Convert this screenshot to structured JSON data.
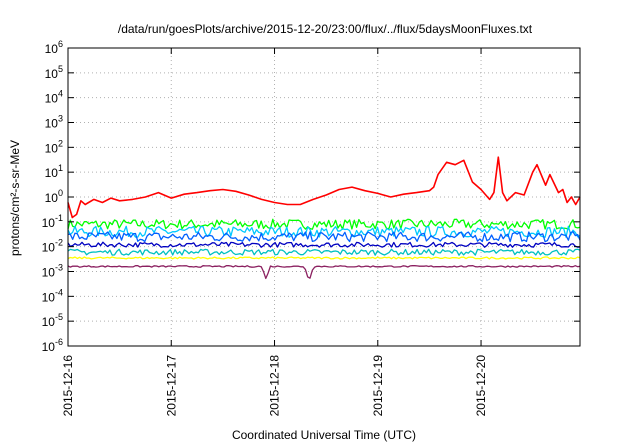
{
  "chart_data": {
    "type": "line",
    "title": "/data/run/goesPlots/archive/2015-12-20/23:00/flux/../flux/5daysMoonFluxes.txt",
    "xlabel": "Coordinated Universal Time (UTC)",
    "ylabel": "protons/cm²-s-sr-MeV",
    "yscale": "log",
    "ylim": [
      1e-06,
      1000000.0
    ],
    "y_ticks": [
      {
        "value": 1e-06,
        "base": "10",
        "exp": "-6"
      },
      {
        "value": 1e-05,
        "base": "10",
        "exp": "-5"
      },
      {
        "value": 0.0001,
        "base": "10",
        "exp": "-4"
      },
      {
        "value": 0.001,
        "base": "10",
        "exp": "-3"
      },
      {
        "value": 0.01,
        "base": "10",
        "exp": "-2"
      },
      {
        "value": 0.1,
        "base": "10",
        "exp": "-1"
      },
      {
        "value": 1,
        "base": "10",
        "exp": "0"
      },
      {
        "value": 10,
        "base": "10",
        "exp": "1"
      },
      {
        "value": 100,
        "base": "10",
        "exp": "2"
      },
      {
        "value": 1000,
        "base": "10",
        "exp": "3"
      },
      {
        "value": 10000,
        "base": "10",
        "exp": "4"
      },
      {
        "value": 100000,
        "base": "10",
        "exp": "5"
      },
      {
        "value": 1000000,
        "base": "10",
        "exp": "6"
      }
    ],
    "xlim": [
      "2015-12-16",
      "2015-12-20T23:00"
    ],
    "x_tick_labels": [
      "2015-12-16",
      "2015-12-17",
      "2015-12-18",
      "2015-12-19",
      "2015-12-20"
    ],
    "grid": true,
    "series": [
      {
        "color": "#ff0000",
        "x": [
          "2015-12-16T00:00",
          "2015-12-16T01:00",
          "2015-12-16T02:00",
          "2015-12-16T03:00",
          "2015-12-16T04:00",
          "2015-12-16T06:00",
          "2015-12-16T08:00",
          "2015-12-16T10:00",
          "2015-12-16T12:00",
          "2015-12-16T15:00",
          "2015-12-16T18:00",
          "2015-12-16T21:00",
          "2015-12-17T00:00",
          "2015-12-17T03:00",
          "2015-12-17T06:00",
          "2015-12-17T09:00",
          "2015-12-17T12:00",
          "2015-12-17T15:00",
          "2015-12-17T18:00",
          "2015-12-17T21:00",
          "2015-12-18T00:00",
          "2015-12-18T03:00",
          "2015-12-18T06:00",
          "2015-12-18T09:00",
          "2015-12-18T12:00",
          "2015-12-18T15:00",
          "2015-12-18T18:00",
          "2015-12-18T21:00",
          "2015-12-19T00:00",
          "2015-12-19T03:00",
          "2015-12-19T06:00",
          "2015-12-19T09:00",
          "2015-12-19T12:00",
          "2015-12-19T13:00",
          "2015-12-19T14:00",
          "2015-12-19T16:00",
          "2015-12-19T18:00",
          "2015-12-19T20:00",
          "2015-12-19T22:00",
          "2015-12-20T00:00",
          "2015-12-20T02:00",
          "2015-12-20T03:00",
          "2015-12-20T04:00",
          "2015-12-20T05:00",
          "2015-12-20T06:00",
          "2015-12-20T08:00",
          "2015-12-20T10:00",
          "2015-12-20T12:00",
          "2015-12-20T13:00",
          "2015-12-20T15:00",
          "2015-12-20T16:00",
          "2015-12-20T18:00",
          "2015-12-20T19:00",
          "2015-12-20T20:00",
          "2015-12-20T21:00",
          "2015-12-20T22:00",
          "2015-12-20T23:00"
        ],
        "values": [
          0.6,
          0.15,
          0.2,
          0.7,
          0.5,
          0.8,
          0.6,
          0.9,
          0.7,
          0.8,
          1.0,
          1.5,
          0.9,
          1.3,
          1.5,
          1.8,
          2.0,
          1.7,
          1.2,
          0.8,
          0.6,
          0.5,
          0.5,
          0.8,
          1.2,
          2.0,
          2.5,
          1.8,
          1.4,
          1.0,
          1.3,
          1.5,
          1.8,
          2.5,
          8,
          25,
          20,
          30,
          4,
          2,
          0.8,
          1.5,
          40,
          1.5,
          0.7,
          1.5,
          1.2,
          10,
          20,
          3,
          8,
          1.5,
          2,
          0.6,
          1.0,
          0.5,
          1.0
        ]
      },
      {
        "color": "#00ff00",
        "x": [
          "2015-12-16",
          "2015-12-20T23:00"
        ],
        "values": [
          0.08,
          0.08
        ],
        "noise": 0.2
      },
      {
        "color": "#00c8ff",
        "x": [
          "2015-12-16",
          "2015-12-20T23:00"
        ],
        "values": [
          0.04,
          0.04
        ],
        "noise": 0.22
      },
      {
        "color": "#0060ff",
        "x": [
          "2015-12-16",
          "2015-12-20T23:00"
        ],
        "values": [
          0.025,
          0.025
        ],
        "noise": 0.2
      },
      {
        "color": "#0000c0",
        "x": [
          "2015-12-16",
          "2015-12-20T23:00"
        ],
        "values": [
          0.012,
          0.012
        ],
        "noise": 0.1
      },
      {
        "color": "#00c0c0",
        "x": [
          "2015-12-16",
          "2015-12-20T23:00"
        ],
        "values": [
          0.006,
          0.006
        ],
        "noise": 0.12
      },
      {
        "color": "#ffff00",
        "x": [
          "2015-12-16",
          "2015-12-20T23:00"
        ],
        "values": [
          0.0035,
          0.0035
        ],
        "noise": 0.04
      },
      {
        "color": "#8b2060",
        "x": [
          "2015-12-16",
          "2015-12-17T21:00",
          "2015-12-17T22:00",
          "2015-12-17T23:00",
          "2015-12-18T07:00",
          "2015-12-18T08:00",
          "2015-12-18T09:00",
          "2015-12-20T23:00"
        ],
        "values": [
          0.0016,
          0.0016,
          0.0005,
          0.0016,
          0.0016,
          0.0004,
          0.0016,
          0.0016
        ],
        "noise": 0.03
      }
    ]
  }
}
